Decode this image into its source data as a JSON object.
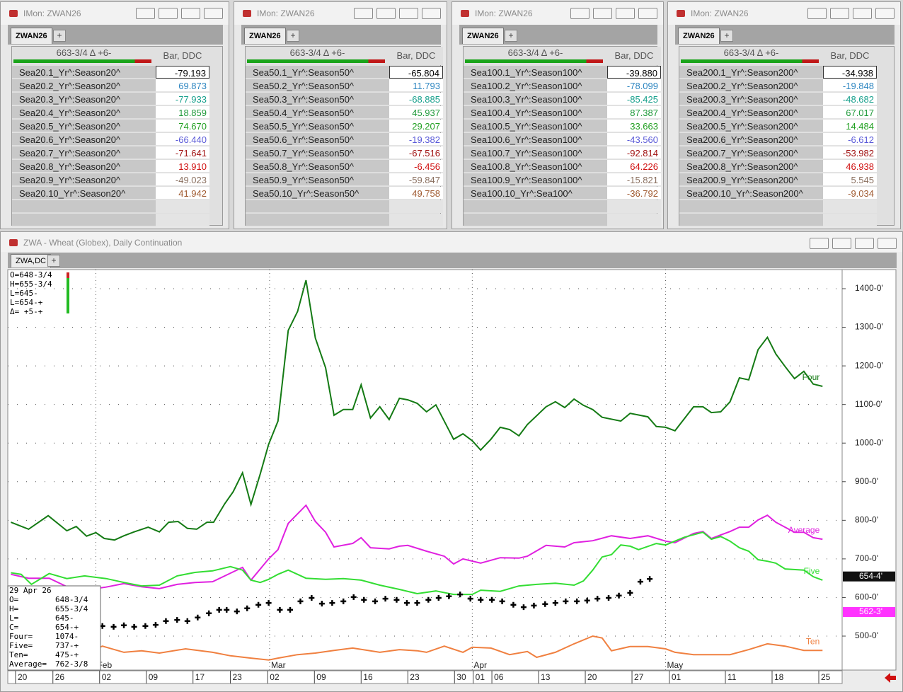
{
  "windows": [
    {
      "title": "IMon: ZWAN26",
      "tab": "ZWAN26",
      "header": "663-3/4 Δ +6-",
      "column": "Bar, DDC",
      "rows": [
        [
          "Sea20.1_Yr^:Season20^",
          "-79.193"
        ],
        [
          "Sea20.2_Yr^:Season20^",
          "69.873"
        ],
        [
          "Sea20.3_Yr^:Season20^",
          "-77.933"
        ],
        [
          "Sea20.4_Yr^:Season20^",
          "18.859"
        ],
        [
          "Sea20.5_Yr^:Season20^",
          "74.670"
        ],
        [
          "Sea20.6_Yr^:Season20^",
          "-66.440"
        ],
        [
          "Sea20.7_Yr^:Season20^",
          "-71.641"
        ],
        [
          "Sea20.8_Yr^:Season20^",
          "13.910"
        ],
        [
          "Sea20.9_Yr^:Season20^",
          "-49.023"
        ],
        [
          "Sea20.10_Yr^:Season20^",
          "41.942"
        ]
      ]
    },
    {
      "title": "IMon: ZWAN26",
      "tab": "ZWAN26",
      "header": "663-3/4 Δ +6-",
      "column": "Bar, DDC",
      "rows": [
        [
          "Sea50.1_Yr^:Season50^",
          "-65.804"
        ],
        [
          "Sea50.2_Yr^:Season50^",
          "11.793"
        ],
        [
          "Sea50.3_Yr^:Season50^",
          "-68.885"
        ],
        [
          "Sea50.4_Yr^:Season50^",
          "45.937"
        ],
        [
          "Sea50.5_Yr^:Season50^",
          "29.207"
        ],
        [
          "Sea50.6_Yr^:Season50^",
          "-19.382"
        ],
        [
          "Sea50.7_Yr^:Season50^",
          "-67.516"
        ],
        [
          "Sea50.8_Yr^:Season50^",
          "-6.456"
        ],
        [
          "Sea50.9_Yr^:Season50^",
          "-59.847"
        ],
        [
          "Sea50.10_Yr^:Season50^",
          "49.758"
        ]
      ]
    },
    {
      "title": "IMon: ZWAN26",
      "tab": "ZWAN26",
      "header": "663-3/4 Δ +6-",
      "column": "Bar, DDC",
      "rows": [
        [
          "Sea100.1_Yr^:Season100^",
          "-39.880"
        ],
        [
          "Sea100.2_Yr^:Season100^",
          "-78.099"
        ],
        [
          "Sea100.3_Yr^:Season100^",
          "-85.425"
        ],
        [
          "Sea100.4_Yr^:Season100^",
          "87.387"
        ],
        [
          "Sea100.5_Yr^:Season100^",
          "33.663"
        ],
        [
          "Sea100.6_Yr^:Season100^",
          "-43.560"
        ],
        [
          "Sea100.7_Yr^:Season100^",
          "-92.814"
        ],
        [
          "Sea100.8_Yr^:Season100^",
          "64.226"
        ],
        [
          "Sea100.9_Yr^:Season100^",
          "-15.821"
        ],
        [
          "Sea100.10_Yr^:Sea100^",
          "-36.792"
        ]
      ]
    },
    {
      "title": "IMon: ZWAN26",
      "tab": "ZWAN26",
      "header": "663-3/4 Δ +6-",
      "column": "Bar, DDC",
      "rows": [
        [
          "Sea200.1_Yr^:Season200^",
          "-34.938"
        ],
        [
          "Sea200.2_Yr^:Season200^",
          "-19.848"
        ],
        [
          "Sea200.3_Yr^:Season200^",
          "-48.682"
        ],
        [
          "Sea200.4_Yr^:Season200^",
          "67.017"
        ],
        [
          "Sea200.5_Yr^:Season200^",
          "14.484"
        ],
        [
          "Sea200.6_Yr^:Season200^",
          "-6.612"
        ],
        [
          "Sea200.7_Yr^:Season200^",
          "-53.982"
        ],
        [
          "Sea200.8_Yr^:Season200^",
          "46.938"
        ],
        [
          "Sea200.9_Yr^:Season200^",
          "5.545"
        ],
        [
          "Sea200.10_Yr^:Season200^",
          "-9.034"
        ]
      ]
    }
  ],
  "row_colors": [
    "#000000",
    "#2e86c1",
    "#17a08c",
    "#1f9a3a",
    "#22a022",
    "#5a5ad8",
    "#a01010",
    "#d01010",
    "#8a7060",
    "#a05a30"
  ],
  "chart_window": {
    "title": "ZWA - Wheat (Globex), Daily Continuation",
    "tab": "ZWA,DC",
    "quote_box": [
      "O=648-3/4",
      "H=655-3/4",
      "L=645-",
      "L=654-+",
      "Δ= +5-+"
    ],
    "data_window": [
      [
        "29 Apr 26"
      ],
      [
        "O=",
        "648-3/4"
      ],
      [
        "H=",
        "655-3/4"
      ],
      [
        "L=",
        "645-"
      ],
      [
        "C=",
        "654-+"
      ],
      [
        "Four=",
        "1074-"
      ],
      [
        "Five=",
        "737-+"
      ],
      [
        "Ten=",
        "475-+"
      ],
      [
        "Average=",
        "762-3/8"
      ]
    ]
  },
  "chart_data": {
    "type": "line",
    "xlim": [
      -0.83,
      88.5
    ],
    "ylim": [
      412,
      1449.5
    ],
    "grid": true,
    "yticks": [
      {
        "value": 500,
        "label": "500-0'"
      },
      {
        "value": 600,
        "label": "600-0'"
      },
      {
        "value": 700,
        "label": "700-0'"
      },
      {
        "value": 800,
        "label": "800-0'"
      },
      {
        "value": 900,
        "label": "900-0'"
      },
      {
        "value": 1000,
        "label": "1000-0'"
      },
      {
        "value": 1100,
        "label": "1100-0'"
      },
      {
        "value": 1200,
        "label": "1200-0'"
      },
      {
        "value": 1300,
        "label": "1300-0'"
      },
      {
        "value": 1400,
        "label": "1400-0'"
      }
    ],
    "xticks": [
      {
        "value": 0,
        "label": "20"
      },
      {
        "value": 4,
        "label": "26"
      },
      {
        "value": 9,
        "label": "02"
      },
      {
        "value": 14,
        "label": "09"
      },
      {
        "value": 19,
        "label": "17"
      },
      {
        "value": 23,
        "label": "23"
      },
      {
        "value": 27,
        "label": "02"
      },
      {
        "value": 32,
        "label": "09"
      },
      {
        "value": 37,
        "label": "16"
      },
      {
        "value": 42,
        "label": "23"
      },
      {
        "value": 47,
        "label": "30"
      },
      {
        "value": 49,
        "label": "01"
      },
      {
        "value": 51,
        "label": "06"
      },
      {
        "value": 56,
        "label": "13"
      },
      {
        "value": 61,
        "label": "20"
      },
      {
        "value": 66,
        "label": "27"
      },
      {
        "value": 70,
        "label": "01"
      },
      {
        "value": 76,
        "label": "11"
      },
      {
        "value": 81,
        "label": "18"
      },
      {
        "value": 86,
        "label": "25"
      }
    ],
    "month_ticks": [
      {
        "value": 8.6,
        "label": "Feb"
      },
      {
        "value": 27.2,
        "label": "Mar"
      },
      {
        "value": 48.9,
        "label": "Apr"
      },
      {
        "value": 69.6,
        "label": "May"
      }
    ],
    "series": [
      {
        "name": "Four",
        "color": "#147a14",
        "x": [
          -0.5,
          1.4,
          3.5,
          5.5,
          6.5,
          7.6,
          8.6,
          9.5,
          10.6,
          11.6,
          12.7,
          14.2,
          15.4,
          16.4,
          17.4,
          18.4,
          19.4,
          20.5,
          21.2,
          22.4,
          23.3,
          24.3,
          25.2,
          26.2,
          27.1,
          28.1,
          29.2,
          30.2,
          31.1,
          32.1,
          33.2,
          34.1,
          35.1,
          36.1,
          37.0,
          38.0,
          39.0,
          40.0,
          41.1,
          42.0,
          43.0,
          44.0,
          45.0,
          46.9,
          47.9,
          48.9,
          49.8,
          50.9,
          51.9,
          52.9,
          53.9,
          54.8,
          56.8,
          57.8,
          58.8,
          59.8,
          60.8,
          61.8,
          62.8,
          64.8,
          65.8,
          67.7,
          68.6,
          69.6,
          70.6,
          71.6,
          72.6,
          73.6,
          74.5,
          75.5,
          76.5,
          77.5,
          78.5,
          79.5,
          80.5,
          81.4,
          82.4,
          83.4,
          84.4,
          85.4,
          86.4
        ],
        "values": [
          795,
          777,
          812,
          773,
          784,
          759,
          768,
          753,
          749,
          760,
          770,
          782,
          770,
          795,
          797,
          779,
          777,
          795,
          795,
          843,
          874,
          923,
          841,
          920,
          997,
          1057,
          1292,
          1341,
          1422,
          1272,
          1195,
          1072,
          1087,
          1087,
          1151,
          1065,
          1094,
          1061,
          1116,
          1112,
          1103,
          1081,
          1099,
          1010,
          1024,
          1006,
          982,
          1010,
          1041,
          1035,
          1019,
          1048,
          1094,
          1107,
          1092,
          1114,
          1098,
          1087,
          1067,
          1057,
          1077,
          1068,
          1043,
          1041,
          1032,
          1063,
          1094,
          1094,
          1079,
          1081,
          1107,
          1169,
          1164,
          1242,
          1274,
          1231,
          1198,
          1167,
          1186,
          1153,
          1147
        ]
      },
      {
        "name": "Average",
        "color": "#e020e0",
        "x": [
          -0.5,
          1.4,
          3.6,
          5.5,
          7.4,
          9.7,
          11.6,
          13.5,
          15.4,
          17.3,
          19.2,
          21.1,
          23.0,
          24.3,
          25.2,
          27.1,
          28.1,
          29.2,
          31.1,
          32.1,
          33.2,
          34.1,
          36.1,
          37.0,
          38.0,
          40.0,
          41.1,
          42.0,
          44.0,
          45.9,
          46.9,
          47.9,
          49.8,
          51.9,
          53.9,
          54.8,
          56.8,
          58.8,
          59.8,
          61.8,
          63.8,
          65.8,
          67.7,
          69.6,
          70.6,
          72.6,
          73.6,
          74.5,
          76.5,
          77.5,
          78.5,
          79.5,
          80.5,
          81.4,
          83.4,
          84.4,
          85.4,
          86.4
        ],
        "values": [
          660,
          650,
          650,
          628,
          619,
          627,
          636,
          628,
          623,
          634,
          639,
          641,
          663,
          678,
          645,
          700,
          724,
          792,
          839,
          797,
          769,
          731,
          740,
          755,
          729,
          726,
          733,
          735,
          720,
          707,
          687,
          700,
          689,
          703,
          702,
          707,
          735,
          731,
          742,
          747,
          760,
          753,
          760,
          746,
          742,
          766,
          771,
          753,
          771,
          782,
          782,
          801,
          813,
          795,
          769,
          769,
          755,
          751
        ]
      },
      {
        "name": "Five",
        "color": "#33dd33",
        "x": [
          -0.5,
          0.6,
          1.7,
          3.6,
          5.5,
          7.4,
          9.7,
          11.6,
          13.5,
          15.4,
          17.3,
          19.2,
          21.1,
          23.0,
          24.3,
          25.2,
          26.2,
          27.1,
          28.1,
          29.2,
          31.1,
          33.2,
          35.1,
          37.0,
          39.0,
          41.1,
          43.0,
          45.0,
          46.9,
          48.9,
          49.8,
          51.9,
          53.9,
          55.8,
          57.8,
          59.8,
          60.8,
          61.8,
          62.8,
          63.8,
          64.8,
          65.8,
          66.7,
          68.6,
          69.6,
          71.6,
          73.6,
          74.5,
          75.5,
          76.5,
          77.5,
          78.5,
          79.5,
          80.5,
          81.4,
          82.4,
          84.4,
          85.4,
          86.4
        ],
        "values": [
          664,
          660,
          634,
          662,
          649,
          656,
          649,
          639,
          630,
          632,
          656,
          665,
          669,
          680,
          671,
          645,
          639,
          647,
          660,
          671,
          650,
          647,
          649,
          645,
          632,
          621,
          610,
          617,
          608,
          608,
          619,
          616,
          630,
          634,
          637,
          632,
          643,
          671,
          705,
          711,
          736,
          733,
          724,
          740,
          736,
          756,
          769,
          751,
          758,
          746,
          729,
          720,
          698,
          694,
          689,
          674,
          671,
          654,
          645
        ]
      },
      {
        "name": "Ten",
        "color": "#f08040",
        "x": [
          -0.5,
          0.6,
          2.1,
          3.6,
          5.5,
          7.4,
          9.3,
          11.6,
          13.5,
          15.4,
          18.2,
          21.1,
          23.0,
          25.2,
          27.1,
          28.1,
          30.2,
          32.1,
          34.1,
          36.1,
          39.0,
          41.1,
          43.0,
          44.0,
          45.9,
          47.9,
          48.9,
          50.9,
          52.9,
          54.8,
          55.8,
          57.8,
          59.8,
          61.8,
          62.8,
          63.8,
          65.8,
          67.7,
          69.6,
          70.6,
          72.6,
          74.5,
          76.5,
          78.5,
          80.5,
          82.4,
          84.4,
          86.4
        ],
        "values": [
          480,
          467,
          478,
          473,
          458,
          454,
          474,
          458,
          462,
          456,
          467,
          458,
          449,
          443,
          438,
          443,
          452,
          456,
          463,
          469,
          458,
          465,
          462,
          458,
          474,
          458,
          471,
          469,
          452,
          460,
          445,
          458,
          480,
          500,
          495,
          462,
          473,
          473,
          467,
          458,
          452,
          452,
          452,
          465,
          480,
          474,
          463,
          463
        ]
      }
    ],
    "bars": {
      "color": "#000000",
      "x": [
        9.3,
        10.5,
        11.6,
        12.7,
        13.9,
        15.0,
        16.1,
        17.3,
        18.4,
        19.5,
        20.7,
        21.8,
        22.6,
        23.7,
        24.8,
        26.0,
        27.1,
        28.3,
        29.4,
        30.5,
        31.7,
        32.8,
        33.9,
        35.1,
        36.2,
        37.3,
        38.5,
        39.6,
        40.8,
        41.9,
        43.0,
        44.2,
        45.3,
        46.4,
        47.6,
        48.7,
        49.8,
        51.0,
        52.1,
        53.3,
        54.4,
        55.5,
        56.7,
        57.8,
        58.9,
        60.1,
        61.2,
        62.3,
        63.5,
        64.6,
        65.8,
        66.9,
        67.9
      ],
      "values": [
        526,
        524,
        528,
        524,
        526,
        529,
        539,
        542,
        539,
        548,
        559,
        568,
        568,
        564,
        572,
        581,
        586,
        568,
        568,
        590,
        599,
        584,
        586,
        590,
        601,
        594,
        590,
        597,
        594,
        586,
        586,
        594,
        599,
        603,
        608,
        597,
        594,
        594,
        590,
        581,
        575,
        579,
        583,
        586,
        590,
        590,
        592,
        597,
        599,
        605,
        612,
        641,
        648
      ]
    },
    "price_tags": [
      {
        "value": 654.5,
        "label": "654-4'",
        "color": "#111111"
      },
      {
        "value": 562.375,
        "label": "562-3'",
        "color": "#ff33ff"
      }
    ]
  }
}
